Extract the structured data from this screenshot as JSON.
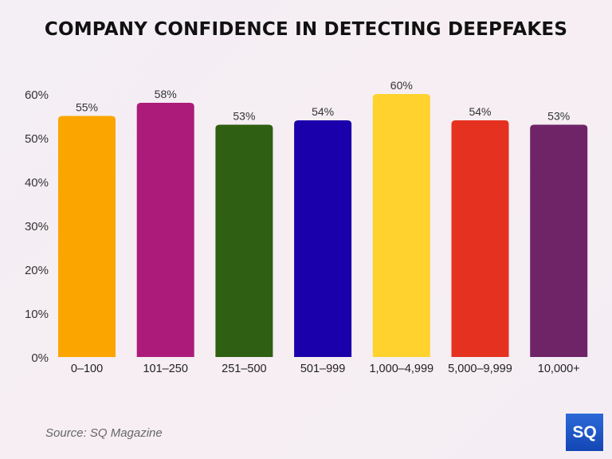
{
  "chart_data": {
    "type": "bar",
    "title": "COMPANY CONFIDENCE IN DETECTING DEEPFAKES",
    "categories": [
      "0–100",
      "101–250",
      "251–500",
      "501–999",
      "1,000–4,999",
      "5,000–9,999",
      "10,000+"
    ],
    "values": [
      55,
      58,
      53,
      54,
      60,
      54,
      53
    ],
    "data_labels": [
      "55%",
      "58%",
      "53%",
      "54%",
      "60%",
      "54%",
      "53%"
    ],
    "colors": [
      "#fba500",
      "#ad1b7a",
      "#2f5f12",
      "#1a00aa",
      "#ffd22e",
      "#e5311f",
      "#6f2468"
    ],
    "yticks": [
      "0%",
      "10%",
      "20%",
      "30%",
      "40%",
      "50%",
      "60%"
    ],
    "ylim": [
      0,
      60
    ],
    "xlabel": "",
    "ylabel": "",
    "grid": false,
    "legend": "none"
  },
  "source": "Source: SQ Magazine",
  "logo": {
    "text": "SQ"
  }
}
